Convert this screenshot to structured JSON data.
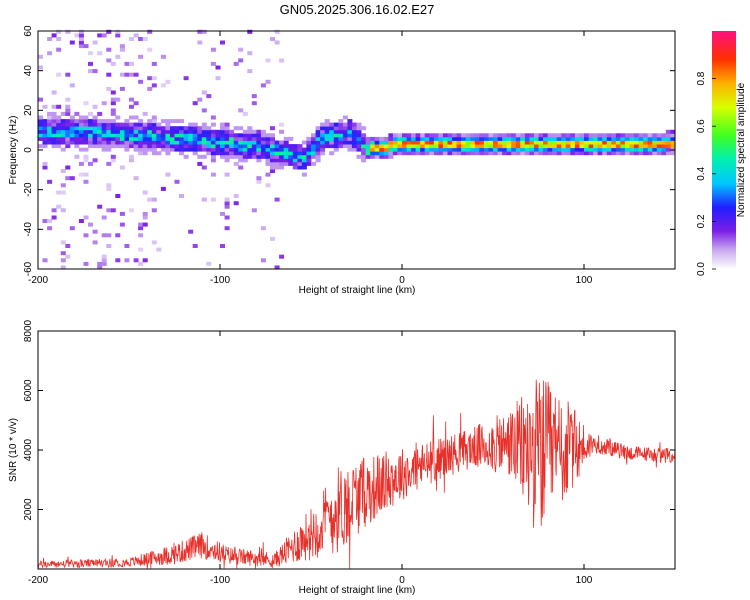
{
  "title": "GN05.2025.306.16.02.E27",
  "chart_data": [
    {
      "type": "heatmap",
      "name": "spectrogram",
      "xlabel": "Height of straight line (km)",
      "ylabel": "Frequency (Hz)",
      "xlim": [
        -200,
        150
      ],
      "ylim": [
        -60,
        60
      ],
      "xticks": [
        -200,
        -100,
        0,
        100
      ],
      "yticks": [
        -60,
        -40,
        -20,
        0,
        20,
        40,
        60
      ],
      "colorbar": {
        "label": "Normalized spectral amplitude",
        "range": [
          0,
          1
        ],
        "ticks": [
          0.0,
          0.2,
          0.4,
          0.6,
          0.8
        ]
      },
      "description_of_trace": [
        {
          "x": -200,
          "y": 9
        },
        {
          "x": -175,
          "y": 8
        },
        {
          "x": -150,
          "y": 7
        },
        {
          "x": -125,
          "y": 5
        },
        {
          "x": -100,
          "y": 3
        },
        {
          "x": -75,
          "y": 0
        },
        {
          "x": -55,
          "y": -5
        },
        {
          "x": -45,
          "y": 5
        },
        {
          "x": -30,
          "y": 8
        },
        {
          "x": -20,
          "y": 0
        },
        {
          "x": 0,
          "y": 2
        },
        {
          "x": 50,
          "y": 2
        },
        {
          "x": 100,
          "y": 2
        },
        {
          "x": 150,
          "y": 3
        }
      ]
    },
    {
      "type": "line",
      "name": "snr",
      "xlabel": "Height of straight line (km)",
      "ylabel": "SNR (10 * v/v)",
      "xlim": [
        -200,
        150
      ],
      "ylim": [
        0,
        8000
      ],
      "xticks": [
        -200,
        -100,
        0,
        100
      ],
      "yticks": [
        2000,
        4000,
        6000,
        8000
      ],
      "color": "#e8302a",
      "envelope": [
        {
          "x": -200,
          "base": 150,
          "noise": 120
        },
        {
          "x": -150,
          "base": 220,
          "noise": 150
        },
        {
          "x": -125,
          "base": 500,
          "noise": 350
        },
        {
          "x": -110,
          "base": 800,
          "noise": 450
        },
        {
          "x": -95,
          "base": 450,
          "noise": 300
        },
        {
          "x": -70,
          "base": 300,
          "noise": 250
        },
        {
          "x": -50,
          "base": 1200,
          "noise": 900
        },
        {
          "x": -35,
          "base": 2000,
          "noise": 1500
        },
        {
          "x": -20,
          "base": 2600,
          "noise": 1200
        },
        {
          "x": 0,
          "base": 3200,
          "noise": 900
        },
        {
          "x": 20,
          "base": 3700,
          "noise": 700
        },
        {
          "x": 40,
          "base": 4100,
          "noise": 700
        },
        {
          "x": 60,
          "base": 4200,
          "noise": 1200
        },
        {
          "x": 75,
          "base": 3800,
          "noise": 2800
        },
        {
          "x": 90,
          "base": 4000,
          "noise": 1800
        },
        {
          "x": 105,
          "base": 4200,
          "noise": 300
        },
        {
          "x": 125,
          "base": 3900,
          "noise": 250
        },
        {
          "x": 150,
          "base": 3800,
          "noise": 250
        }
      ]
    }
  ]
}
